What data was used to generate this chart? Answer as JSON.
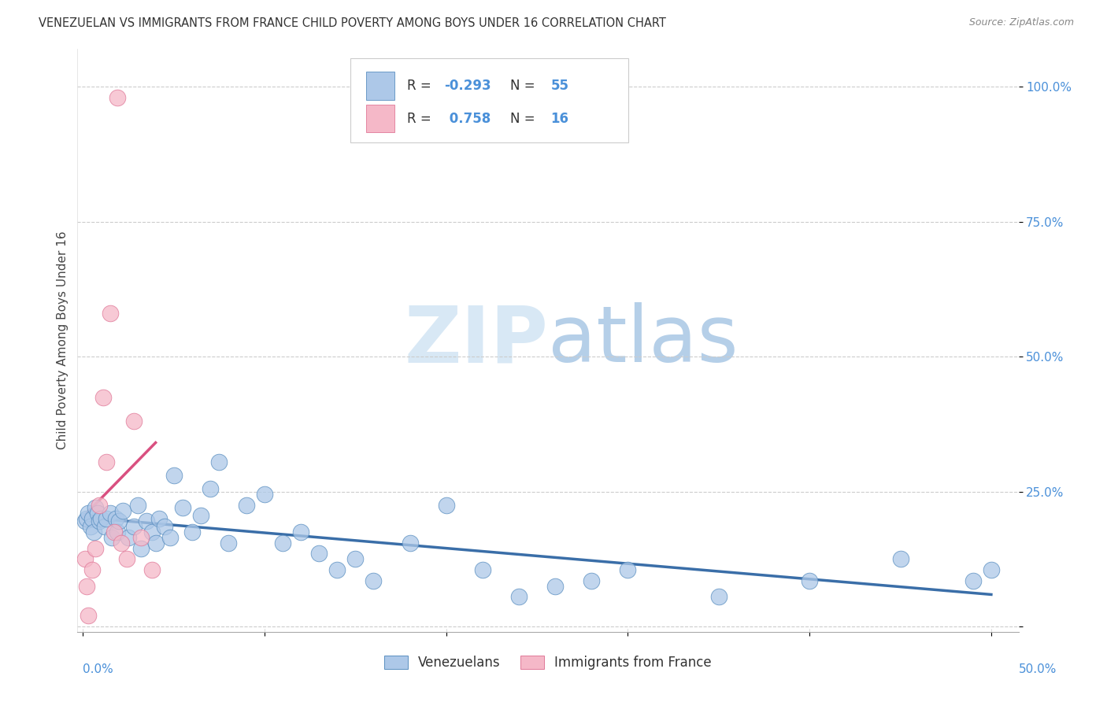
{
  "title": "VENEZUELAN VS IMMIGRANTS FROM FRANCE CHILD POVERTY AMONG BOYS UNDER 16 CORRELATION CHART",
  "source": "Source: ZipAtlas.com",
  "ylabel": "Child Poverty Among Boys Under 16",
  "ytick_vals": [
    0.0,
    0.25,
    0.5,
    0.75,
    1.0
  ],
  "ytick_labels": [
    "",
    "25.0%",
    "50.0%",
    "75.0%",
    "100.0%"
  ],
  "xlim": [
    0.0,
    0.5
  ],
  "ylim": [
    0.0,
    1.05
  ],
  "legend_blue_R": "-0.293",
  "legend_blue_N": "55",
  "legend_pink_R": "0.758",
  "legend_pink_N": "16",
  "blue_color": "#adc8e8",
  "blue_edge_color": "#5a8fc0",
  "blue_line_color": "#3a6ea8",
  "pink_color": "#f5b8c8",
  "pink_edge_color": "#e07898",
  "pink_line_color": "#d95080",
  "ven_x": [
    0.001,
    0.002,
    0.003,
    0.004,
    0.005,
    0.006,
    0.007,
    0.008,
    0.009,
    0.01,
    0.012,
    0.013,
    0.015,
    0.016,
    0.018,
    0.019,
    0.02,
    0.022,
    0.025,
    0.028,
    0.03,
    0.032,
    0.035,
    0.038,
    0.04,
    0.042,
    0.045,
    0.048,
    0.05,
    0.055,
    0.06,
    0.065,
    0.07,
    0.075,
    0.08,
    0.09,
    0.1,
    0.11,
    0.12,
    0.13,
    0.14,
    0.15,
    0.16,
    0.18,
    0.2,
    0.22,
    0.24,
    0.26,
    0.28,
    0.3,
    0.35,
    0.4,
    0.45,
    0.49,
    0.5
  ],
  "ven_y": [
    0.195,
    0.2,
    0.21,
    0.185,
    0.2,
    0.175,
    0.22,
    0.21,
    0.195,
    0.2,
    0.185,
    0.2,
    0.21,
    0.165,
    0.2,
    0.175,
    0.195,
    0.215,
    0.165,
    0.185,
    0.225,
    0.145,
    0.195,
    0.175,
    0.155,
    0.2,
    0.185,
    0.165,
    0.28,
    0.22,
    0.175,
    0.205,
    0.255,
    0.305,
    0.155,
    0.225,
    0.245,
    0.155,
    0.175,
    0.135,
    0.105,
    0.125,
    0.085,
    0.155,
    0.225,
    0.105,
    0.055,
    0.075,
    0.085,
    0.105,
    0.055,
    0.085,
    0.125,
    0.085,
    0.105
  ],
  "fra_x": [
    0.001,
    0.002,
    0.003,
    0.005,
    0.007,
    0.009,
    0.011,
    0.013,
    0.015,
    0.017,
    0.019,
    0.021,
    0.024,
    0.028,
    0.032,
    0.038
  ],
  "fra_y": [
    0.125,
    0.075,
    0.02,
    0.105,
    0.145,
    0.225,
    0.425,
    0.305,
    0.58,
    0.175,
    0.98,
    0.155,
    0.125,
    0.38,
    0.165,
    0.105
  ]
}
